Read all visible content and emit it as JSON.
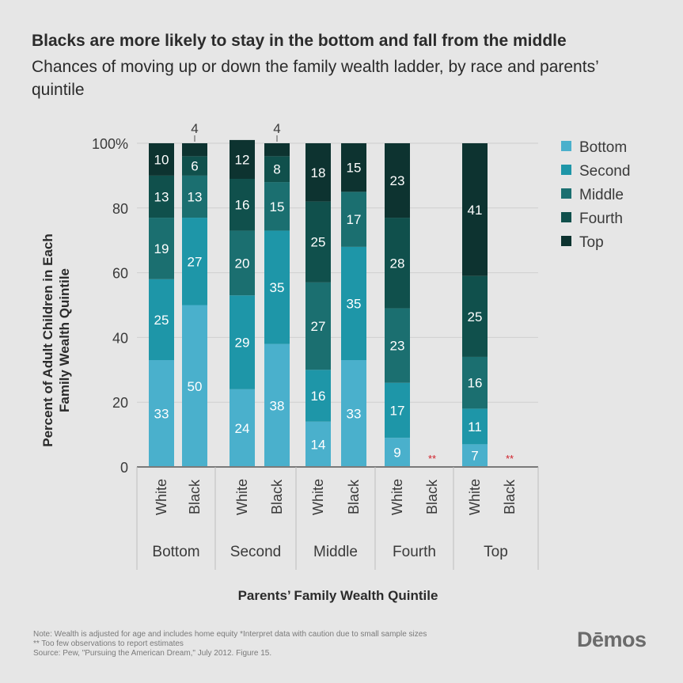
{
  "title": "Blacks are more likely to stay in the bottom and fall from the middle",
  "subtitle": "Chances of moving up or down the family wealth ladder, by race and parents’ quintile",
  "footnotes": [
    "Note: Wealth is adjusted for age and includes home equity *Interpret data with caution due to small sample sizes",
    "** Too few observations to report estimates",
    "Source: Pew, \"Pursuing the American Dream,\" July 2012. Figure 15."
  ],
  "brand": "Dēmos",
  "chart_data": {
    "type": "bar",
    "stacked": true,
    "xlabel": "Parents’ Family Wealth Quintile",
    "ylabel": "Percent of Adult Children in Each Family Wealth Quintile",
    "ylim": [
      0,
      100
    ],
    "yticks": [
      0,
      20,
      40,
      60,
      80,
      100
    ],
    "ytick_labels": [
      "0",
      "20",
      "40",
      "60",
      "80",
      "100%"
    ],
    "grid": true,
    "legend_position": "top-right",
    "series_colors": {
      "Bottom": "#4ab0cc",
      "Second": "#1e96a8",
      "Middle": "#1b6f70",
      "Fourth": "#10504c",
      "Top": "#0d3330"
    },
    "legend": [
      "Bottom",
      "Second",
      "Middle",
      "Fourth",
      "Top"
    ],
    "groups": [
      "Bottom",
      "Second",
      "Middle",
      "Fourth",
      "Top"
    ],
    "bars": [
      {
        "group": "Bottom",
        "label": "White",
        "values": {
          "Bottom": 33,
          "Second": 25,
          "Middle": 19,
          "Fourth": 13,
          "Top": 10
        }
      },
      {
        "group": "Bottom",
        "label": "Black",
        "values": {
          "Bottom": 50,
          "Second": 27,
          "Middle": 13,
          "Fourth": 6,
          "Top": 4
        }
      },
      {
        "group": "Second",
        "label": "White",
        "values": {
          "Bottom": 24,
          "Second": 29,
          "Middle": 20,
          "Fourth": 16,
          "Top": 12
        }
      },
      {
        "group": "Second",
        "label": "Black",
        "values": {
          "Bottom": 38,
          "Second": 35,
          "Middle": 15,
          "Fourth": 8,
          "Top": 4
        }
      },
      {
        "group": "Middle",
        "label": "White",
        "values": {
          "Bottom": 14,
          "Second": 16,
          "Middle": 27,
          "Fourth": 25,
          "Top": 18
        }
      },
      {
        "group": "Middle",
        "label": "Black",
        "values": {
          "Bottom": 33,
          "Second": 35,
          "Middle": 17,
          "Fourth": 0,
          "Top": 15
        }
      },
      {
        "group": "Fourth",
        "label": "White",
        "values": {
          "Bottom": 9,
          "Second": 17,
          "Middle": 23,
          "Fourth": 28,
          "Top": 23
        }
      },
      {
        "group": "Fourth",
        "label": "Black",
        "values": null,
        "note": "**"
      },
      {
        "group": "Top",
        "label": "White",
        "values": {
          "Bottom": 7,
          "Second": 11,
          "Middle": 16,
          "Fourth": 25,
          "Top": 41
        }
      },
      {
        "group": "Top",
        "label": "Black",
        "values": null,
        "note": "**"
      }
    ]
  }
}
